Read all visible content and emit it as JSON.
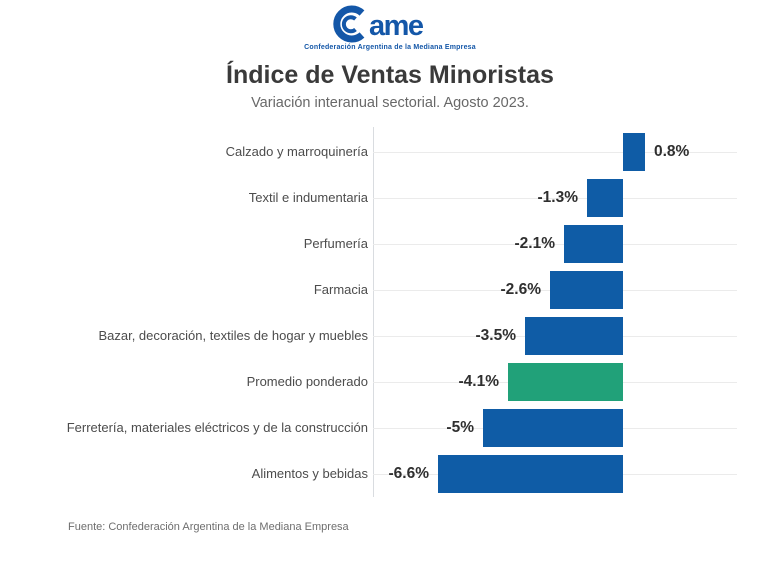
{
  "logo": {
    "wordmark": "Came",
    "wordmark_rest": "ame",
    "subtext": "Confederación Argentina de la Mediana Empresa",
    "color": "#1457a8"
  },
  "header": {
    "title": "Índice de Ventas Minoristas",
    "subtitle": "Variación interanual sectorial. Agosto 2023."
  },
  "chart_data": {
    "type": "bar",
    "orientation": "horizontal",
    "title": "Índice de Ventas Minoristas",
    "subtitle": "Variación interanual sectorial. Agosto 2023.",
    "unit": "%",
    "categories": [
      "Calzado y marroquinería",
      "Textil e indumentaria",
      "Perfumería",
      "Farmacia",
      "Bazar, decoración, textiles de hogar y muebles",
      "Promedio ponderado",
      "Ferretería, materiales eléctricos y de la construcción",
      "Alimentos y bebidas"
    ],
    "values": [
      0.8,
      -1.3,
      -2.1,
      -2.6,
      -3.5,
      -4.1,
      -5,
      -6.6
    ],
    "value_labels": [
      "0.8%",
      "-1.3%",
      "-2.1%",
      "-2.6%",
      "-3.5%",
      "-4.1%",
      "-5%",
      "-6.6%"
    ],
    "highlight_index": 5,
    "highlight_category": "Promedio ponderado",
    "colors": {
      "bar": "#0f5ca6",
      "highlight": "#21a179",
      "grid": "#ebebeb",
      "axis": "#d9dce0"
    },
    "xlim": [
      -9,
      4
    ],
    "grid": "horizontal guide per category",
    "legend": "none"
  },
  "footer": {
    "source": "Fuente: Confederación Argentina de la Mediana Empresa"
  }
}
